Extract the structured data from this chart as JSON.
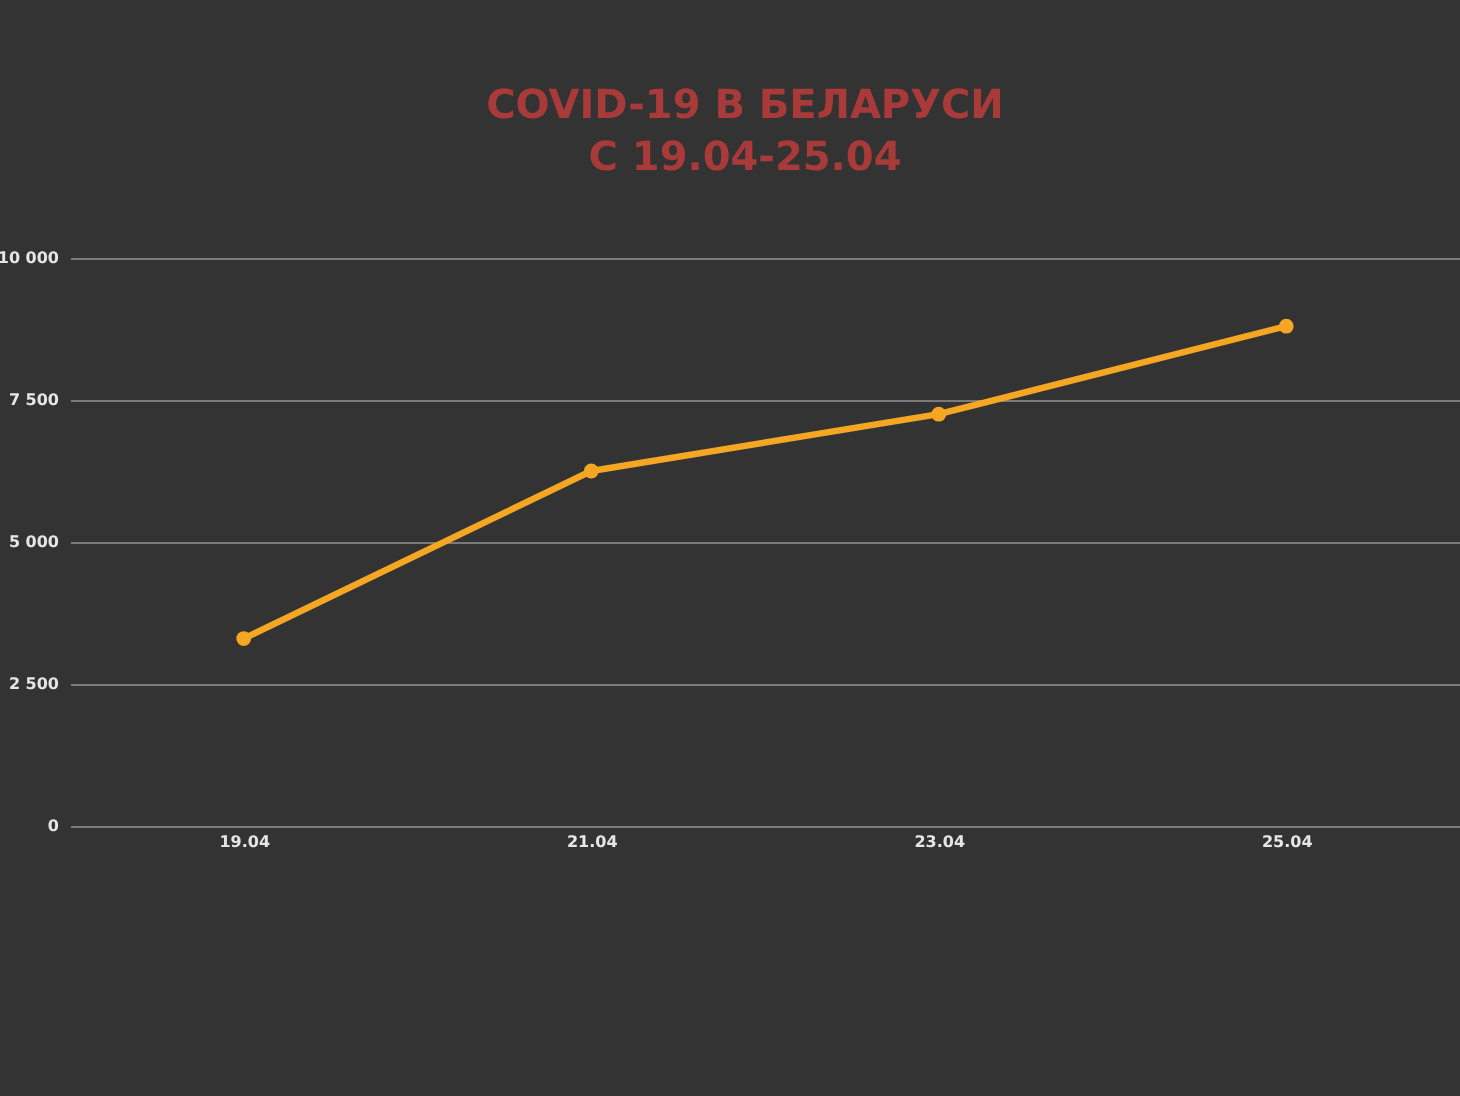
{
  "chart_data": {
    "type": "line",
    "title": "COVID-19 В БЕЛАРУСИ",
    "subtitle": "С 19.04-25.04",
    "categories": [
      "19.04",
      "21.04",
      "23.04",
      "25.04"
    ],
    "series": [
      {
        "color": "#f5a623",
        "values": [
          3300,
          6250,
          7250,
          8800
        ]
      }
    ],
    "ylim": [
      0,
      10000
    ],
    "yticks": [
      0,
      {
        "value": 2500,
        "label": "2 500"
      },
      {
        "value": 5000,
        "label": "5 000"
      },
      {
        "value": 7500,
        "label": "7 500"
      },
      {
        "value": 10000,
        "label": "10 000"
      }
    ],
    "grid": "y",
    "marker": "circle",
    "line_style": "solid"
  }
}
